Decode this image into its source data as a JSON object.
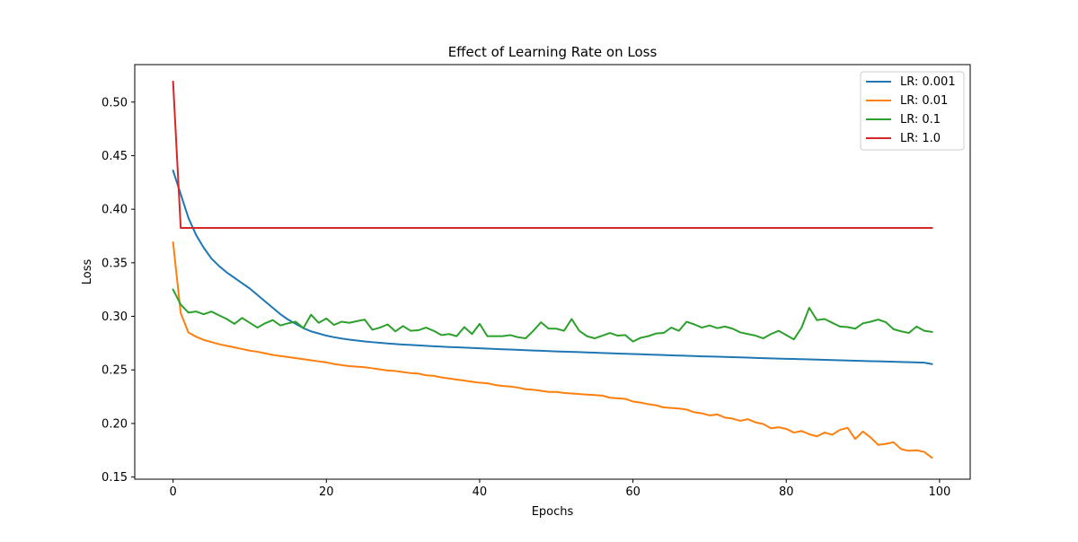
{
  "chart_data": {
    "type": "line",
    "title": "Effect of Learning Rate on Loss",
    "xlabel": "Epochs",
    "ylabel": "Loss",
    "xlim": [
      -5,
      104
    ],
    "ylim": [
      0.148,
      0.535
    ],
    "xticks": [
      0,
      20,
      40,
      60,
      80,
      100
    ],
    "yticks": [
      0.15,
      0.2,
      0.25,
      0.3,
      0.35,
      0.4,
      0.45,
      0.5
    ],
    "xtick_labels": [
      "0",
      "20",
      "40",
      "60",
      "80",
      "100"
    ],
    "ytick_labels": [
      "0.15",
      "0.20",
      "0.25",
      "0.30",
      "0.35",
      "0.40",
      "0.45",
      "0.50"
    ],
    "grid": false,
    "legend_position": "top-right",
    "x": [
      0,
      1,
      2,
      3,
      4,
      5,
      6,
      7,
      8,
      9,
      10,
      11,
      12,
      13,
      14,
      15,
      16,
      17,
      18,
      19,
      20,
      21,
      22,
      23,
      24,
      25,
      26,
      27,
      28,
      29,
      30,
      31,
      32,
      33,
      34,
      35,
      36,
      37,
      38,
      39,
      40,
      41,
      42,
      43,
      44,
      45,
      46,
      47,
      48,
      49,
      50,
      51,
      52,
      53,
      54,
      55,
      56,
      57,
      58,
      59,
      60,
      61,
      62,
      63,
      64,
      65,
      66,
      67,
      68,
      69,
      70,
      71,
      72,
      73,
      74,
      75,
      76,
      77,
      78,
      79,
      80,
      81,
      82,
      83,
      84,
      85,
      86,
      87,
      88,
      89,
      90,
      91,
      92,
      93,
      94,
      95,
      96,
      97,
      98,
      99
    ],
    "series": [
      {
        "name": "LR: 0.001",
        "color": "#1f77b4",
        "values": [
          0.436,
          0.414,
          0.392,
          0.376,
          0.364,
          0.354,
          0.347,
          0.341,
          0.336,
          0.331,
          0.326,
          0.32,
          0.314,
          0.308,
          0.302,
          0.297,
          0.293,
          0.289,
          0.286,
          0.284,
          0.282,
          0.2805,
          0.2793,
          0.2783,
          0.2774,
          0.2766,
          0.2759,
          0.2753,
          0.2747,
          0.2742,
          0.2737,
          0.2733,
          0.2729,
          0.2725,
          0.2721,
          0.2718,
          0.2714,
          0.2711,
          0.2708,
          0.2705,
          0.2702,
          0.2699,
          0.2696,
          0.2693,
          0.269,
          0.2687,
          0.2684,
          0.2681,
          0.2679,
          0.2676,
          0.2673,
          0.2671,
          0.2668,
          0.2666,
          0.2663,
          0.2661,
          0.2658,
          0.2656,
          0.2653,
          0.2651,
          0.2648,
          0.2646,
          0.2643,
          0.2641,
          0.2639,
          0.2636,
          0.2634,
          0.2632,
          0.263,
          0.2627,
          0.2625,
          0.2623,
          0.2621,
          0.2619,
          0.2617,
          0.2615,
          0.2612,
          0.261,
          0.2608,
          0.2606,
          0.2604,
          0.2602,
          0.26,
          0.2598,
          0.2596,
          0.2594,
          0.2592,
          0.259,
          0.2588,
          0.2586,
          0.2584,
          0.2582,
          0.258,
          0.2578,
          0.2576,
          0.2574,
          0.2572,
          0.257,
          0.2568,
          0.2555
        ]
      },
      {
        "name": "LR: 0.01",
        "color": "#ff7f0e",
        "values": [
          0.369,
          0.303,
          0.285,
          0.281,
          0.278,
          0.276,
          0.274,
          0.2725,
          0.271,
          0.2695,
          0.268,
          0.267,
          0.2655,
          0.264,
          0.263,
          0.262,
          0.261,
          0.26,
          0.259,
          0.258,
          0.257,
          0.2555,
          0.2545,
          0.2535,
          0.253,
          0.2525,
          0.2515,
          0.2505,
          0.2495,
          0.249,
          0.248,
          0.247,
          0.2465,
          0.245,
          0.2445,
          0.243,
          0.242,
          0.241,
          0.24,
          0.239,
          0.238,
          0.2375,
          0.236,
          0.235,
          0.2345,
          0.2335,
          0.232,
          0.2315,
          0.2305,
          0.2295,
          0.2295,
          0.2285,
          0.228,
          0.2275,
          0.227,
          0.2265,
          0.226,
          0.224,
          0.2235,
          0.223,
          0.2205,
          0.2195,
          0.218,
          0.217,
          0.215,
          0.2145,
          0.214,
          0.213,
          0.2105,
          0.2095,
          0.2075,
          0.2085,
          0.2055,
          0.2045,
          0.2025,
          0.204,
          0.201,
          0.1995,
          0.1955,
          0.1965,
          0.195,
          0.1915,
          0.193,
          0.19,
          0.188,
          0.1915,
          0.1895,
          0.194,
          0.196,
          0.1855,
          0.1925,
          0.187,
          0.18,
          0.181,
          0.1825,
          0.176,
          0.1745,
          0.175,
          0.1735,
          0.168
        ]
      },
      {
        "name": "LR: 0.1",
        "color": "#2ca02c",
        "values": [
          0.325,
          0.311,
          0.3035,
          0.3045,
          0.302,
          0.3045,
          0.301,
          0.2975,
          0.293,
          0.2985,
          0.294,
          0.2895,
          0.2935,
          0.2965,
          0.2915,
          0.2935,
          0.295,
          0.289,
          0.3015,
          0.294,
          0.298,
          0.292,
          0.295,
          0.294,
          0.2955,
          0.297,
          0.2875,
          0.2895,
          0.2925,
          0.286,
          0.291,
          0.2865,
          0.287,
          0.2895,
          0.2865,
          0.2825,
          0.2835,
          0.2815,
          0.29,
          0.2835,
          0.293,
          0.2815,
          0.2815,
          0.2815,
          0.2825,
          0.2805,
          0.2795,
          0.2865,
          0.2945,
          0.2885,
          0.2885,
          0.2865,
          0.2975,
          0.2865,
          0.2815,
          0.2795,
          0.282,
          0.2845,
          0.282,
          0.2825,
          0.2765,
          0.28,
          0.2815,
          0.284,
          0.2845,
          0.2895,
          0.2865,
          0.295,
          0.2925,
          0.2895,
          0.2915,
          0.289,
          0.2905,
          0.2885,
          0.285,
          0.2835,
          0.282,
          0.2795,
          0.2835,
          0.2865,
          0.2825,
          0.2785,
          0.2895,
          0.308,
          0.2965,
          0.2975,
          0.294,
          0.2905,
          0.29,
          0.2885,
          0.2935,
          0.295,
          0.297,
          0.2945,
          0.288,
          0.286,
          0.2845,
          0.2905,
          0.2865,
          0.2855
        ]
      },
      {
        "name": "LR: 1.0",
        "color": "#d62728",
        "values": [
          0.519,
          0.3825,
          0.3825,
          0.3825,
          0.3825,
          0.3825,
          0.3825,
          0.3825,
          0.3825,
          0.3825,
          0.3825,
          0.3825,
          0.3825,
          0.3825,
          0.3825,
          0.3825,
          0.3825,
          0.3825,
          0.3825,
          0.3825,
          0.3825,
          0.3825,
          0.3825,
          0.3825,
          0.3825,
          0.3825,
          0.3825,
          0.3825,
          0.3825,
          0.3825,
          0.3825,
          0.3825,
          0.3825,
          0.3825,
          0.3825,
          0.3825,
          0.3825,
          0.3825,
          0.3825,
          0.3825,
          0.3825,
          0.3825,
          0.3825,
          0.3825,
          0.3825,
          0.3825,
          0.3825,
          0.3825,
          0.3825,
          0.3825,
          0.3825,
          0.3825,
          0.3825,
          0.3825,
          0.3825,
          0.3825,
          0.3825,
          0.3825,
          0.3825,
          0.3825,
          0.3825,
          0.3825,
          0.3825,
          0.3825,
          0.3825,
          0.3825,
          0.3825,
          0.3825,
          0.3825,
          0.3825,
          0.3825,
          0.3825,
          0.3825,
          0.3825,
          0.3825,
          0.3825,
          0.3825,
          0.3825,
          0.3825,
          0.3825,
          0.3825,
          0.3825,
          0.3825,
          0.3825,
          0.3825,
          0.3825,
          0.3825,
          0.3825,
          0.3825,
          0.3825,
          0.3825,
          0.3825,
          0.3825,
          0.3825,
          0.3825,
          0.3825,
          0.3825,
          0.3825,
          0.3825,
          0.3825
        ]
      }
    ]
  }
}
